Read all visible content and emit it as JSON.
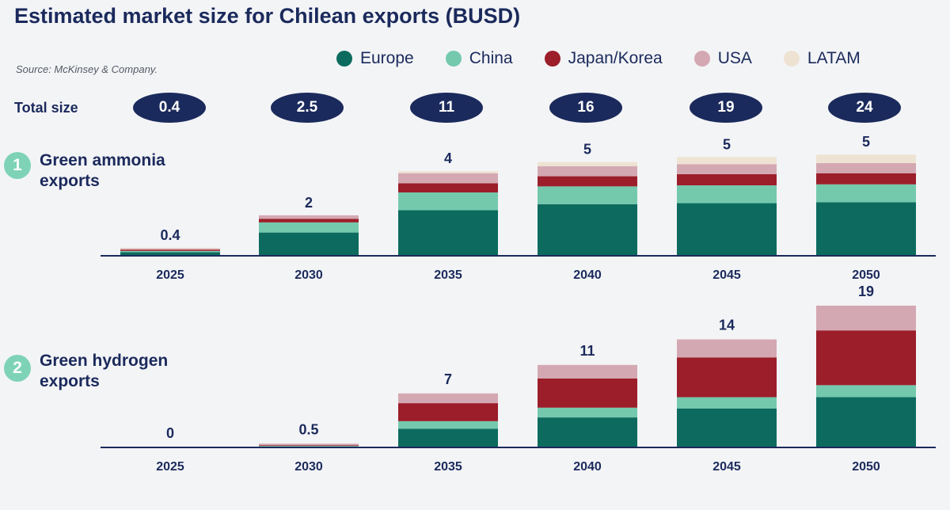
{
  "header": {
    "title": "Estimated market size for Chilean exports (BUSD)",
    "source": "Source: McKinsey & Company."
  },
  "totals": {
    "label": "Total size",
    "values": [
      "0.4",
      "2.5",
      "11",
      "16",
      "19",
      "24"
    ]
  },
  "sections": [
    {
      "number": "1",
      "label": "Green ammonia exports"
    },
    {
      "number": "2",
      "label": "Green hydrogen exports"
    }
  ],
  "colors": {
    "Europe": "#0c6b5e",
    "China": "#74c9ad",
    "Japan/Korea": "#9b1e2a",
    "USA": "#d4a8b2",
    "LATAM": "#eee3d2"
  },
  "legend": [
    "Europe",
    "China",
    "Japan/Korea",
    "USA",
    "LATAM"
  ],
  "chart_data": [
    {
      "type": "bar",
      "stacked": true,
      "title": "Green ammonia exports",
      "categories": [
        "2025",
        "2030",
        "2035",
        "2040",
        "2045",
        "2050"
      ],
      "totals_labels": [
        "0.4",
        "2",
        "4",
        "5",
        "5",
        "5"
      ],
      "ylim": [
        0,
        5.4
      ],
      "series": [
        {
          "name": "Europe",
          "values": [
            0.18,
            1.15,
            2.25,
            2.55,
            2.6,
            2.65
          ]
        },
        {
          "name": "China",
          "values": [
            0.06,
            0.5,
            0.88,
            0.88,
            0.88,
            0.88
          ]
        },
        {
          "name": "Japan/Korea",
          "values": [
            0.06,
            0.18,
            0.45,
            0.5,
            0.55,
            0.55
          ]
        },
        {
          "name": "USA",
          "values": [
            0.06,
            0.17,
            0.5,
            0.5,
            0.5,
            0.5
          ]
        },
        {
          "name": "LATAM",
          "values": [
            0.04,
            0.0,
            0.1,
            0.2,
            0.35,
            0.42
          ]
        }
      ]
    },
    {
      "type": "bar",
      "stacked": true,
      "title": "Green hydrogen exports",
      "categories": [
        "2025",
        "2030",
        "2035",
        "2040",
        "2045",
        "2050"
      ],
      "totals_labels": [
        "0",
        "0.5",
        "7",
        "11",
        "14",
        "19"
      ],
      "ylim": [
        0,
        19
      ],
      "series": [
        {
          "name": "Europe",
          "values": [
            0,
            0.1,
            2.5,
            4.0,
            5.2,
            6.7
          ]
        },
        {
          "name": "China",
          "values": [
            0,
            0.1,
            1.0,
            1.3,
            1.5,
            1.6
          ]
        },
        {
          "name": "Japan/Korea",
          "values": [
            0,
            0.1,
            2.4,
            3.9,
            5.3,
            7.3
          ]
        },
        {
          "name": "USA",
          "values": [
            0,
            0.2,
            1.3,
            1.8,
            2.4,
            3.3
          ]
        },
        {
          "name": "LATAM",
          "values": [
            0,
            0,
            0,
            0,
            0,
            0
          ]
        }
      ]
    }
  ]
}
